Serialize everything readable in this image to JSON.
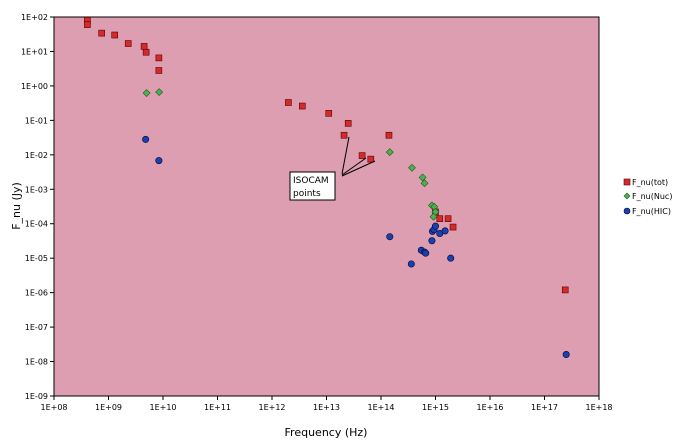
{
  "chart_data": {
    "type": "scatter",
    "title": "",
    "xlabel": "Frequency (Hz)",
    "ylabel": "F_nu (Jy)",
    "xscale": "log",
    "yscale": "log",
    "xlim": [
      100000000.0,
      1e+18
    ],
    "ylim": [
      1e-09,
      100
    ],
    "xticks": [
      "1E+08",
      "1E+09",
      "1E+10",
      "1E+11",
      "1E+12",
      "1E+13",
      "1E+14",
      "1E+15",
      "1E+16",
      "1E+17",
      "1E+18"
    ],
    "yticks": [
      "1E+02",
      "1E+01",
      "1E+00",
      "1E-01",
      "1E-02",
      "1E-03",
      "1E-04",
      "1E-05",
      "1E-06",
      "1E-07",
      "1E-08",
      "1E-09"
    ],
    "grid": false,
    "plot_background": "#dd9eb2",
    "legend_position": "right",
    "annotation": {
      "lines": [
        "ISOCAM",
        "points"
      ]
    },
    "series": [
      {
        "name": "F_nu(tot)",
        "marker": "square",
        "color": "#d42a2a",
        "x": [
          410000000.0,
          410000000.0,
          750000000.0,
          1300000000.0,
          2300000000.0,
          4500000000.0,
          4900000000.0,
          8400000000.0,
          8400000000.0,
          2000000000000.0,
          3600000000000.0,
          11000000000000.0,
          21000000000000.0,
          25000000000000.0,
          45000000000000.0,
          65000000000000.0,
          140000000000000.0,
          1000000000000000.0,
          1200000000000000.0,
          1700000000000000.0,
          2100000000000000.0,
          2.4e+17
        ],
        "y": [
          80,
          60,
          34,
          30,
          17,
          14,
          9.5,
          6.5,
          2.8,
          0.33,
          0.26,
          0.16,
          0.037,
          0.082,
          0.0095,
          0.0075,
          0.037,
          0.00022,
          0.00014,
          0.00014,
          8e-05,
          1.2e-06
        ]
      },
      {
        "name": "F_nu(Nuc)",
        "marker": "diamond",
        "color": "#4caf50",
        "x": [
          5000000000.0,
          8500000000.0,
          145000000000000.0,
          370000000000000.0,
          580000000000000.0,
          630000000000000.0,
          860000000000000.0,
          950000000000000.0,
          1000000000000000.0,
          920000000000000.0
        ],
        "y": [
          0.62,
          0.66,
          0.012,
          0.0042,
          0.0022,
          0.0015,
          0.00034,
          0.00031,
          0.00022,
          0.00016
        ]
      },
      {
        "name": "F_nu(HIC)",
        "marker": "circle",
        "color": "#1a3fb0",
        "x": [
          4800000000.0,
          8400000000.0,
          145000000000000.0,
          360000000000000.0,
          550000000000000.0,
          630000000000000.0,
          660000000000000.0,
          860000000000000.0,
          880000000000000.0,
          940000000000000.0,
          1000000000000000.0,
          1200000000000000.0,
          1500000000000000.0,
          1900000000000000.0,
          2.5e+17
        ],
        "y": [
          0.028,
          0.0068,
          4.2e-05,
          6.8e-06,
          1.7e-05,
          1.5e-05,
          1.4e-05,
          3.2e-05,
          6e-05,
          6.8e-05,
          8.5e-05,
          5.2e-05,
          6.2e-05,
          1e-05,
          1.6e-08
        ]
      }
    ]
  }
}
